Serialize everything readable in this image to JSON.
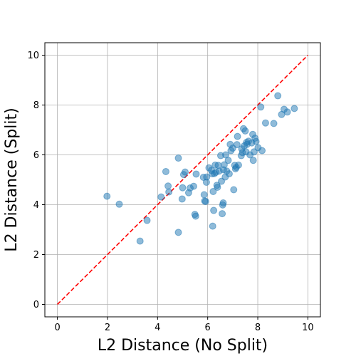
{
  "chart_data": {
    "type": "scatter",
    "xlabel": "L2 Distance (No Split)",
    "ylabel": "L2 Distance (Split)",
    "xlim": [
      -0.5,
      10.5
    ],
    "ylim": [
      -0.5,
      10.5
    ],
    "xticks": [
      0,
      2,
      4,
      6,
      8,
      10
    ],
    "yticks": [
      0,
      2,
      4,
      6,
      8,
      10
    ],
    "grid": true,
    "point_color": "#1f77b4",
    "reference_line": {
      "from": [
        0,
        0
      ],
      "to": [
        10,
        10
      ],
      "color": "#ff0000",
      "style": "dashed"
    },
    "points": [
      [
        1.98,
        4.34
      ],
      [
        2.47,
        4.02
      ],
      [
        3.3,
        2.54
      ],
      [
        3.58,
        3.37
      ],
      [
        4.14,
        4.31
      ],
      [
        4.33,
        5.33
      ],
      [
        4.42,
        4.75
      ],
      [
        4.45,
        4.51
      ],
      [
        4.83,
        2.89
      ],
      [
        4.83,
        5.87
      ],
      [
        4.98,
        4.23
      ],
      [
        5.0,
        4.68
      ],
      [
        5.04,
        5.21
      ],
      [
        5.1,
        5.31
      ],
      [
        5.24,
        4.48
      ],
      [
        5.3,
        4.67
      ],
      [
        5.44,
        4.74
      ],
      [
        5.49,
        3.61
      ],
      [
        5.52,
        3.54
      ],
      [
        5.54,
        5.23
      ],
      [
        5.83,
        5.1
      ],
      [
        5.86,
        4.4
      ],
      [
        5.88,
        4.15
      ],
      [
        5.92,
        4.13
      ],
      [
        5.95,
        4.9
      ],
      [
        5.96,
        5.11
      ],
      [
        6.05,
        5.48
      ],
      [
        6.15,
        5.38
      ],
      [
        6.18,
        5.24
      ],
      [
        6.2,
        3.14
      ],
      [
        6.22,
        4.53
      ],
      [
        6.24,
        3.77
      ],
      [
        6.27,
        5.25
      ],
      [
        6.3,
        5.59
      ],
      [
        6.33,
        5.3
      ],
      [
        6.37,
        4.78
      ],
      [
        6.39,
        4.7
      ],
      [
        6.42,
        5.58
      ],
      [
        6.46,
        5.35
      ],
      [
        6.52,
        5.97
      ],
      [
        6.55,
        4.94
      ],
      [
        6.58,
        3.64
      ],
      [
        6.6,
        3.99
      ],
      [
        6.62,
        4.07
      ],
      [
        6.63,
        5.4
      ],
      [
        6.66,
        5.6
      ],
      [
        6.7,
        5.11
      ],
      [
        6.72,
        6.0
      ],
      [
        6.76,
        5.35
      ],
      [
        6.82,
        5.78
      ],
      [
        6.86,
        5.24
      ],
      [
        6.9,
        6.42
      ],
      [
        6.93,
        6.17
      ],
      [
        7.0,
        6.27
      ],
      [
        7.04,
        4.6
      ],
      [
        7.08,
        5.58
      ],
      [
        7.11,
        5.44
      ],
      [
        7.14,
        5.5
      ],
      [
        7.17,
        6.41
      ],
      [
        7.19,
        6.74
      ],
      [
        7.23,
        5.59
      ],
      [
        7.34,
        5.97
      ],
      [
        7.36,
        6.24
      ],
      [
        7.39,
        6.09
      ],
      [
        7.43,
        7.05
      ],
      [
        7.46,
        6.36
      ],
      [
        7.5,
        6.96
      ],
      [
        7.53,
        6.12
      ],
      [
        7.55,
        6.5
      ],
      [
        7.57,
        6.42
      ],
      [
        7.63,
        6.55
      ],
      [
        7.69,
        6.0
      ],
      [
        7.76,
        6.48
      ],
      [
        7.8,
        6.82
      ],
      [
        7.82,
        5.78
      ],
      [
        7.85,
        6.12
      ],
      [
        7.89,
        6.67
      ],
      [
        7.93,
        6.54
      ],
      [
        8.01,
        6.29
      ],
      [
        8.12,
        7.92
      ],
      [
        8.17,
        6.17
      ],
      [
        8.31,
        7.28
      ],
      [
        8.64,
        7.26
      ],
      [
        8.8,
        8.37
      ],
      [
        8.95,
        7.62
      ],
      [
        9.05,
        7.83
      ],
      [
        9.18,
        7.72
      ],
      [
        9.46,
        7.86
      ]
    ]
  }
}
